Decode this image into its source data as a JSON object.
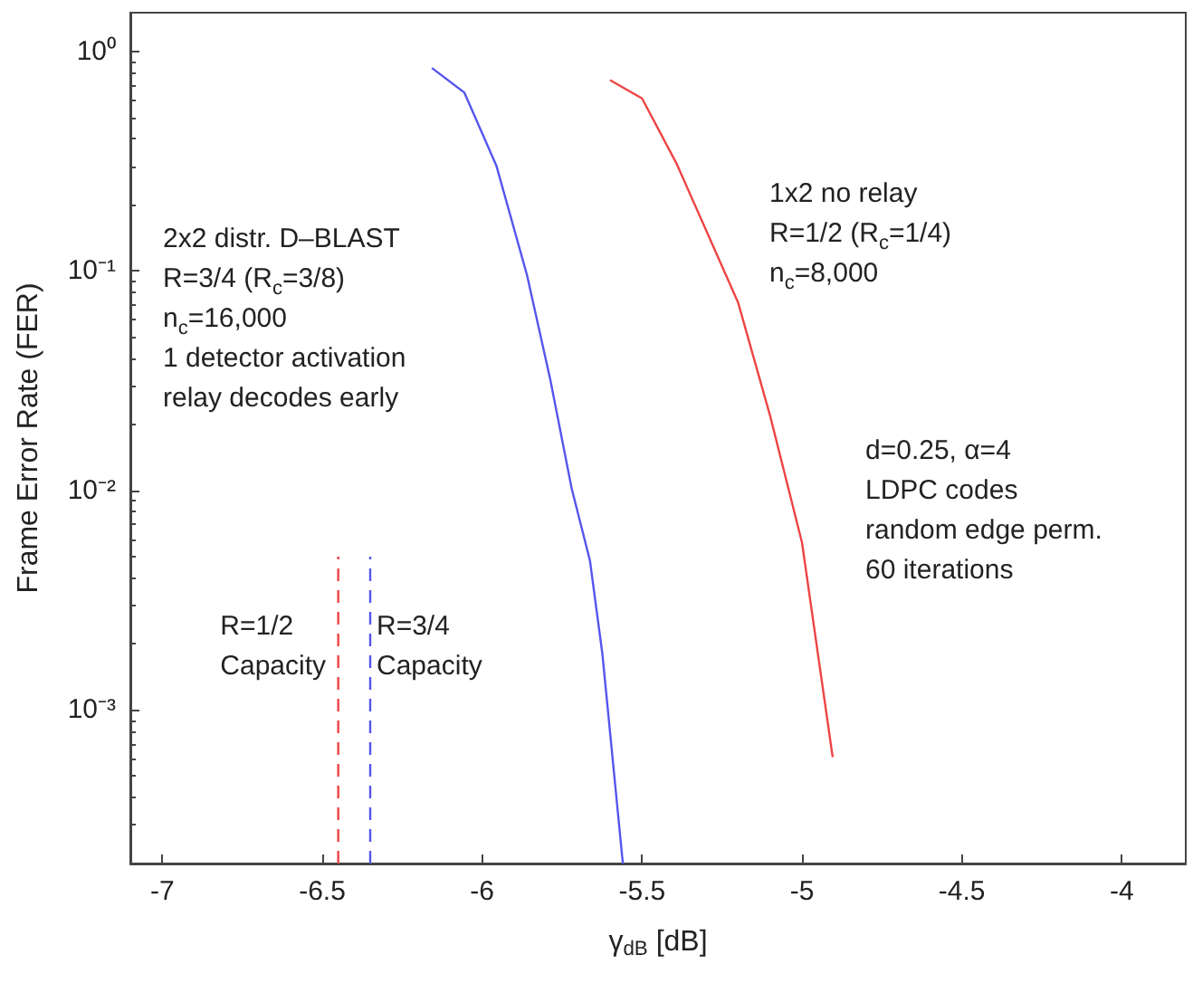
{
  "chart_data": {
    "type": "line",
    "xlabel": "γ$_{dB}$ [dB]",
    "ylabel": "Frame Error Rate (FER)",
    "xlim": [
      -7.1,
      -3.8
    ],
    "xticks": [
      -7,
      -6.5,
      -6,
      -5.5,
      -5,
      -4.5,
      -4
    ],
    "ylim": [
      0.0002,
      1.5
    ],
    "log": "y",
    "yticks": [
      {
        "value": 1,
        "label": "10⁰"
      },
      {
        "value": 0.1,
        "label": "10⁻¹"
      },
      {
        "value": 0.01,
        "label": "10⁻²"
      },
      {
        "value": 0.001,
        "label": "10⁻³"
      }
    ],
    "grid": false,
    "marker": "none",
    "series": [
      {
        "color": "#5555ee",
        "x": [
          -6.157,
          -6.056,
          -5.955,
          -5.86,
          -5.787,
          -5.72,
          -5.663,
          -5.624,
          -5.56
        ],
        "values": [
          0.84,
          0.65,
          0.3,
          0.096,
          0.032,
          0.0102,
          0.0048,
          0.0018,
          0.0002
        ]
      },
      {
        "color": "#ee4444",
        "x": [
          -5.6,
          -5.5,
          -5.393,
          -5.2,
          -5.1,
          -5.0,
          -4.904
        ],
        "values": [
          0.74,
          0.61,
          0.31,
          0.072,
          0.022,
          0.0058,
          0.00061
        ]
      },
      {
        "color": "#ee4444",
        "line_style": "dashed",
        "x": [
          -6.45,
          -6.45
        ],
        "values": [
          0.0002,
          0.005
        ]
      },
      {
        "color": "#5555ee",
        "line_style": "dashed",
        "x": [
          -6.35,
          -6.35
        ],
        "values": [
          0.0002,
          0.005
        ]
      }
    ],
    "annotations": [
      "2x2 distr. D–BLAST\nR=3/4 (R$_{c}$=3/8)\nn$_{c}$=16,000\n1 detector activation\nrelay decodes early",
      "1x2 no relay\nR=1/2 (R$_{c}$=1/4)\nn$_{c}$=8,000",
      "d=0.25, α=4\nLDPC codes\nrandom edge perm.\n60 iterations",
      "R=1/2\nCapacity",
      "R=3/4\nCapacity"
    ]
  }
}
